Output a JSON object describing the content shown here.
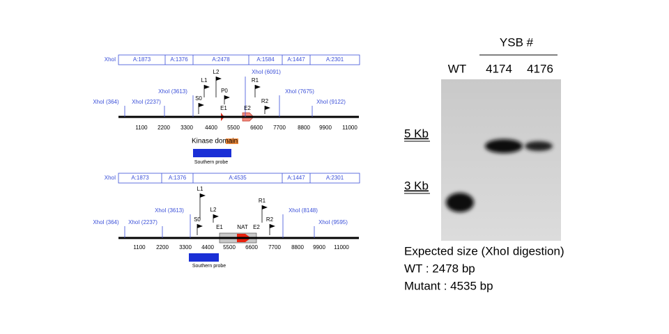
{
  "wt_map": {
    "enzyme": "XhoI",
    "fragments": [
      "A:1873",
      "A:1376",
      "A:2478",
      "A:1584",
      "A:1447",
      "A:2301"
    ],
    "sites": [
      "XhoI (364)",
      "XhoI (2237)",
      "XhoI (3613)",
      "XhoI (6091)",
      "XhoI (7675)",
      "XhoI (9122)"
    ],
    "primers": [
      "L1",
      "L2",
      "S0",
      "P0",
      "R1",
      "R2"
    ],
    "exons": [
      "E1",
      "E2"
    ],
    "scale": [
      1100,
      2200,
      3300,
      4400,
      5500,
      6600,
      7700,
      8800,
      9900,
      11000
    ],
    "kinase_domain": "Kinase domain",
    "probe": "Southern probe"
  },
  "mutant_map": {
    "enzyme": "XhoI",
    "fragments": [
      "A:1873",
      "A:1376",
      "A:4535",
      "A:1447",
      "A:2301"
    ],
    "sites": [
      "XhoI (364)",
      "XhoI (2237)",
      "XhoI (3613)",
      "XhoI (8148)",
      "XhoI (9595)"
    ],
    "primers": [
      "L1",
      "L2",
      "S0",
      "R1",
      "R2"
    ],
    "exons": [
      "E1",
      "NAT",
      "E2"
    ],
    "scale": [
      1100,
      2200,
      3300,
      4400,
      5500,
      6600,
      7700,
      8800,
      9900,
      11000
    ],
    "probe": "Southern probe"
  },
  "blot": {
    "group": "YSB #",
    "lanes": [
      "WT",
      "4174",
      "4176"
    ],
    "size_markers": [
      "5 Kb",
      "3 Kb"
    ]
  },
  "caption": [
    "Expected size (XhoI digestion)",
    "WT : 2478 bp",
    "Mutant : 4535 bp"
  ]
}
